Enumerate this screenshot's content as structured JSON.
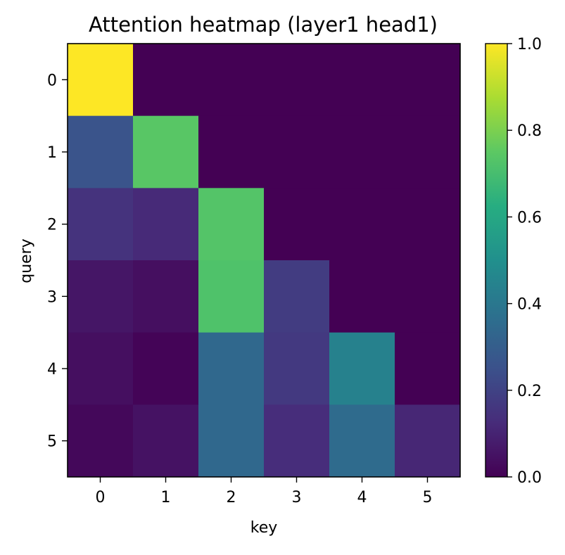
{
  "chart_data": {
    "type": "heatmap",
    "title": "Attention heatmap (layer1 head1)",
    "xlabel": "key",
    "ylabel": "query",
    "x_categories": [
      "0",
      "1",
      "2",
      "3",
      "4",
      "5"
    ],
    "y_categories": [
      "0",
      "1",
      "2",
      "3",
      "4",
      "5"
    ],
    "values": [
      [
        1.0,
        0.0,
        0.0,
        0.0,
        0.0,
        0.0
      ],
      [
        0.26,
        0.74,
        0.0,
        0.0,
        0.0,
        0.0
      ],
      [
        0.15,
        0.12,
        0.73,
        0.0,
        0.0,
        0.0
      ],
      [
        0.06,
        0.04,
        0.72,
        0.18,
        0.0,
        0.0
      ],
      [
        0.04,
        0.01,
        0.34,
        0.17,
        0.44,
        0.0
      ],
      [
        0.02,
        0.05,
        0.34,
        0.13,
        0.35,
        0.11
      ]
    ],
    "colormap": "viridis",
    "colorbar": {
      "range": [
        0.0,
        1.0
      ],
      "ticks": [
        "0.0",
        "0.2",
        "0.4",
        "0.6",
        "0.8",
        "1.0"
      ]
    }
  }
}
